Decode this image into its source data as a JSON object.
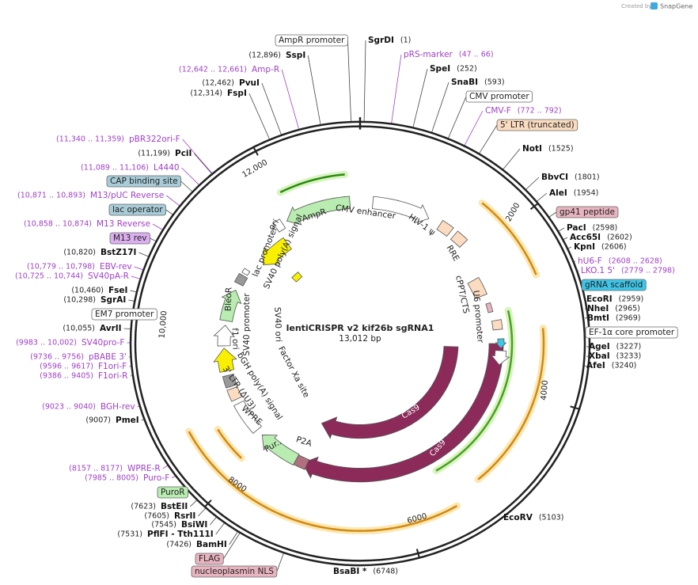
{
  "header": {
    "credit": "Created by",
    "brand": "SnapGene"
  },
  "map": {
    "name": "lentiCRISPR v2 kif26b sgRNA1",
    "size": "13,012 bp",
    "ruler": [
      "2000",
      "4000",
      "6000",
      "8000",
      "10,000",
      "12,000"
    ],
    "enzymes": [
      {
        "name": "SgrDI",
        "position": "(1)"
      },
      {
        "name": "SpeI",
        "position": "(252)"
      },
      {
        "name": "SnaBI",
        "position": "(593)"
      },
      {
        "name": "NotI",
        "position": "(1525)"
      },
      {
        "name": "BbvCI",
        "position": "(1801)"
      },
      {
        "name": "AleI",
        "position": "(1954)"
      },
      {
        "name": "PacI",
        "position": "(2598)"
      },
      {
        "name": "Acc65I",
        "position": "(2602)"
      },
      {
        "name": "KpnI",
        "position": "(2606)"
      },
      {
        "name": "EcoRI",
        "position": "(2959)"
      },
      {
        "name": "NheI",
        "position": "(2965)"
      },
      {
        "name": "BmtI",
        "position": "(2969)"
      },
      {
        "name": "AgeI",
        "position": "(3227)"
      },
      {
        "name": "XbaI",
        "position": "(3233)"
      },
      {
        "name": "AfeI",
        "position": "(3240)"
      },
      {
        "name": "EcoRV",
        "position": "(5103)"
      },
      {
        "name": "BsaBI *",
        "position": "(6748)"
      },
      {
        "name": "BamHI",
        "position": "(7426)"
      },
      {
        "name": "PflFI - Tth111I",
        "position": "(7531)"
      },
      {
        "name": "BsiWI",
        "position": "(7545)"
      },
      {
        "name": "RsrII",
        "position": "(7605)"
      },
      {
        "name": "BstEII",
        "position": "(7623)"
      },
      {
        "name": "PmeI",
        "position": "(9007)"
      },
      {
        "name": "AvrII",
        "position": "(10,055)"
      },
      {
        "name": "SgrAI",
        "position": "(10,298)"
      },
      {
        "name": "FseI",
        "position": "(10,460)"
      },
      {
        "name": "BstZ17I",
        "position": "(10,820)"
      },
      {
        "name": "PciI",
        "position": "(11,199)"
      },
      {
        "name": "FspI",
        "position": "(12,314)"
      },
      {
        "name": "PvuI",
        "position": "(12,462)"
      },
      {
        "name": "SspI",
        "position": "(12,896)"
      }
    ],
    "primers": [
      {
        "name": "pRS-marker",
        "position": "(47 .. 66)"
      },
      {
        "name": "CMV-F",
        "position": "(772 .. 792)"
      },
      {
        "name": "hU6-F",
        "position": "(2608 .. 2628)"
      },
      {
        "name": "LKO.1 5'",
        "position": "(2779 .. 2798)"
      },
      {
        "name": "Puro-F",
        "position": "(7985 .. 8005)"
      },
      {
        "name": "WPRE-R",
        "position": "(8157 .. 8177)"
      },
      {
        "name": "BGH-rev",
        "position": "(9023 .. 9040)"
      },
      {
        "name": "F1ori-R",
        "position": "(9386 .. 9405)"
      },
      {
        "name": "F1ori-F",
        "position": "(9596 .. 9617)"
      },
      {
        "name": "pBABE 3'",
        "position": "(9736 .. 9756)"
      },
      {
        "name": "SV40pro-F",
        "position": "(9983 .. 10,002)"
      },
      {
        "name": "SV40pA-R",
        "position": "(10,725 .. 10,744)"
      },
      {
        "name": "EBV-rev",
        "position": "(10,779 .. 10,798)"
      },
      {
        "name": "M13 Reverse",
        "position": "(10,858 .. 10,874)"
      },
      {
        "name": "M13/pUC Reverse",
        "position": "(10,871 .. 10,893)"
      },
      {
        "name": "L4440",
        "position": "(11,089 .. 11,106)"
      },
      {
        "name": "pBR322ori-F",
        "position": "(11,340 .. 11,359)"
      },
      {
        "name": "Amp-R",
        "position": "(12,642 .. 12,661)"
      }
    ],
    "features": [
      {
        "name": "AmpR promoter",
        "color": "#ffffff"
      },
      {
        "name": "CMV promoter",
        "color": "#ffffff"
      },
      {
        "name": "5' LTR (truncated)",
        "color": "#fbdcc0"
      },
      {
        "name": "gp41 peptide",
        "color": "#e8b4c0"
      },
      {
        "name": "gRNA scaffold",
        "color": "#3ec6e8"
      },
      {
        "name": "EF-1α core promoter",
        "color": "#ffffff"
      },
      {
        "name": "FLAG",
        "color": "#e8b4c0"
      },
      {
        "name": "nucleoplasmin NLS",
        "color": "#e8b4c0"
      },
      {
        "name": "PuroR",
        "color": "#b8ecb0"
      },
      {
        "name": "EM7 promoter",
        "color": "#ffffff"
      },
      {
        "name": "M13 rev",
        "color": "#dcb0f0"
      },
      {
        "name": "lac operator",
        "color": "#a8ccd8"
      },
      {
        "name": "CAP binding site",
        "color": "#a8ccd8"
      }
    ],
    "inner_labels": [
      "CMV enhancer",
      "HIV-1 ψ",
      "RRE",
      "cPPT/CTS",
      "U6 promoter",
      "AmpR",
      "ori",
      "lac promoter",
      "SV40 poly(A) signal",
      "BleoR",
      "SV40 promoter",
      "f1 ori",
      "SV40 ori",
      "Factor Xa site",
      "bGH poly(A) signal",
      "3' LTR (ΔU3)",
      "WPRE",
      "Pur..",
      "P2A",
      "Cas9",
      "Cas9"
    ]
  }
}
